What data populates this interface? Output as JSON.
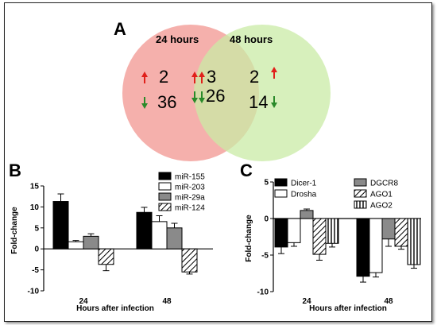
{
  "panels": {
    "a": "A",
    "b": "B",
    "c": "C"
  },
  "venn": {
    "left_title": "24 hours",
    "right_title": "48 hours",
    "left_up": "2",
    "left_down": "36",
    "overlap_up": "3",
    "overlap_down": "26",
    "right_up": "2",
    "right_down": "14",
    "colors": {
      "left": "#f4a7a3",
      "right": "#c9eba5",
      "up_arrow": "#e0201b",
      "down_arrow": "#2a8a2a"
    }
  },
  "chart_data": [
    {
      "type": "bar",
      "panel": "B",
      "categories": [
        "24",
        "48"
      ],
      "xlabel": "Hours after infection",
      "ylabel": "Fold-change",
      "ylim": [
        -10,
        15
      ],
      "yticks": [
        "-10",
        "-5",
        "0",
        "5",
        "10",
        "15"
      ],
      "series": [
        {
          "name": "miR-155",
          "values": [
            11.3,
            8.7
          ],
          "errors": [
            1.8,
            1.2
          ],
          "pattern": "solid-black"
        },
        {
          "name": "miR-203",
          "values": [
            1.7,
            6.5
          ],
          "errors": [
            0.3,
            1.4
          ],
          "pattern": "white"
        },
        {
          "name": "miR-29a",
          "values": [
            3.0,
            5.0
          ],
          "errors": [
            0.6,
            1.1
          ],
          "pattern": "gray"
        },
        {
          "name": "miR-124",
          "values": [
            -3.7,
            -5.5
          ],
          "errors": [
            1.5,
            0.5
          ],
          "pattern": "hatch"
        }
      ]
    },
    {
      "type": "bar",
      "panel": "C",
      "categories": [
        "24",
        "48"
      ],
      "xlabel": "Hours after infection",
      "ylabel": "Fold-change",
      "ylim": [
        -10,
        5
      ],
      "yticks": [
        "-10",
        "-5",
        "0",
        "5"
      ],
      "series": [
        {
          "name": "Dicer-1",
          "values": [
            -3.9,
            -7.9
          ],
          "errors": [
            0.9,
            0.8
          ],
          "pattern": "solid-black"
        },
        {
          "name": "Drosha",
          "values": [
            -3.3,
            -7.4
          ],
          "errors": [
            0.5,
            0.6
          ],
          "pattern": "white"
        },
        {
          "name": "DGCR8",
          "values": [
            1.1,
            -2.8
          ],
          "errors": [
            0.2,
            1.0
          ],
          "pattern": "gray"
        },
        {
          "name": "AGO1",
          "values": [
            -4.9,
            -3.8
          ],
          "errors": [
            0.8,
            0.4
          ],
          "pattern": "hatch"
        },
        {
          "name": "AGO2",
          "values": [
            -3.4,
            -6.3
          ],
          "errors": [
            0.5,
            0.5
          ],
          "pattern": "vstripe"
        }
      ]
    }
  ]
}
